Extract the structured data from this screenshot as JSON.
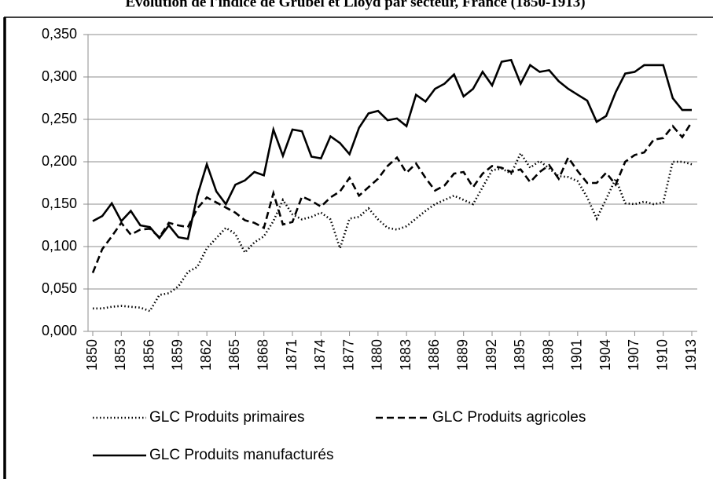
{
  "chart_data": {
    "type": "line",
    "title": "Evolution de l'indice de Grubel et Lloyd par secteur, France (1850-1913)",
    "x": [
      1850,
      1851,
      1852,
      1853,
      1854,
      1855,
      1856,
      1857,
      1858,
      1859,
      1860,
      1861,
      1862,
      1863,
      1864,
      1865,
      1866,
      1867,
      1868,
      1869,
      1870,
      1871,
      1872,
      1873,
      1874,
      1875,
      1876,
      1877,
      1878,
      1879,
      1880,
      1881,
      1882,
      1883,
      1884,
      1885,
      1886,
      1887,
      1888,
      1889,
      1890,
      1891,
      1892,
      1893,
      1894,
      1895,
      1896,
      1897,
      1898,
      1899,
      1900,
      1901,
      1902,
      1903,
      1904,
      1905,
      1906,
      1907,
      1908,
      1909,
      1910,
      1911,
      1912,
      1913
    ],
    "xlim": [
      1850,
      1913
    ],
    "xticks": [
      1850,
      1853,
      1856,
      1859,
      1862,
      1865,
      1868,
      1871,
      1874,
      1877,
      1880,
      1883,
      1886,
      1889,
      1892,
      1895,
      1898,
      1901,
      1904,
      1907,
      1910,
      1913
    ],
    "ylim": [
      0,
      0.35
    ],
    "yticks": [
      {
        "value": 0,
        "label": "0,000"
      },
      {
        "value": 0.05,
        "label": "0,050"
      },
      {
        "value": 0.1,
        "label": "0,100"
      },
      {
        "value": 0.15,
        "label": "0,150"
      },
      {
        "value": 0.2,
        "label": "0,200"
      },
      {
        "value": 0.25,
        "label": "0,250"
      },
      {
        "value": 0.3,
        "label": "0,300"
      },
      {
        "value": 0.35,
        "label": "0,350"
      }
    ],
    "grid": true,
    "legend": "bottom",
    "series": [
      {
        "name": "GLC Produits primaires",
        "color": "#000000",
        "style": "dotted",
        "values": [
          0.027,
          0.027,
          0.029,
          0.03,
          0.029,
          0.028,
          0.024,
          0.043,
          0.045,
          0.053,
          0.07,
          0.076,
          0.098,
          0.11,
          0.122,
          0.115,
          0.093,
          0.105,
          0.112,
          0.13,
          0.155,
          0.138,
          0.132,
          0.135,
          0.14,
          0.132,
          0.098,
          0.133,
          0.135,
          0.145,
          0.132,
          0.122,
          0.12,
          0.124,
          0.133,
          0.142,
          0.15,
          0.155,
          0.16,
          0.155,
          0.15,
          0.17,
          0.19,
          0.192,
          0.186,
          0.21,
          0.193,
          0.201,
          0.192,
          0.183,
          0.182,
          0.177,
          0.158,
          0.133,
          0.156,
          0.18,
          0.151,
          0.15,
          0.153,
          0.15,
          0.152,
          0.2,
          0.2,
          0.197
        ]
      },
      {
        "name": "GLC Produits agricoles",
        "color": "#000000",
        "style": "dashed",
        "values": [
          0.069,
          0.097,
          0.112,
          0.128,
          0.114,
          0.12,
          0.121,
          0.111,
          0.128,
          0.125,
          0.123,
          0.145,
          0.158,
          0.152,
          0.146,
          0.14,
          0.131,
          0.128,
          0.122,
          0.163,
          0.126,
          0.129,
          0.159,
          0.154,
          0.147,
          0.158,
          0.165,
          0.181,
          0.16,
          0.17,
          0.18,
          0.195,
          0.205,
          0.187,
          0.198,
          0.181,
          0.166,
          0.172,
          0.186,
          0.188,
          0.17,
          0.186,
          0.195,
          0.193,
          0.188,
          0.191,
          0.176,
          0.188,
          0.196,
          0.18,
          0.205,
          0.189,
          0.175,
          0.175,
          0.187,
          0.173,
          0.2,
          0.208,
          0.211,
          0.226,
          0.228,
          0.242,
          0.229,
          0.247
        ]
      },
      {
        "name": "GLC Produits manufacturés",
        "color": "#000000",
        "style": "solid",
        "values": [
          0.13,
          0.136,
          0.151,
          0.13,
          0.142,
          0.125,
          0.123,
          0.11,
          0.125,
          0.111,
          0.109,
          0.16,
          0.197,
          0.165,
          0.15,
          0.173,
          0.178,
          0.188,
          0.184,
          0.238,
          0.207,
          0.238,
          0.236,
          0.206,
          0.204,
          0.23,
          0.222,
          0.209,
          0.24,
          0.257,
          0.26,
          0.249,
          0.251,
          0.242,
          0.279,
          0.271,
          0.286,
          0.292,
          0.303,
          0.277,
          0.286,
          0.306,
          0.29,
          0.318,
          0.32,
          0.292,
          0.314,
          0.306,
          0.308,
          0.295,
          0.286,
          0.279,
          0.272,
          0.247,
          0.254,
          0.282,
          0.304,
          0.306,
          0.314,
          0.314,
          0.314,
          0.275,
          0.261,
          0.261
        ]
      }
    ]
  }
}
